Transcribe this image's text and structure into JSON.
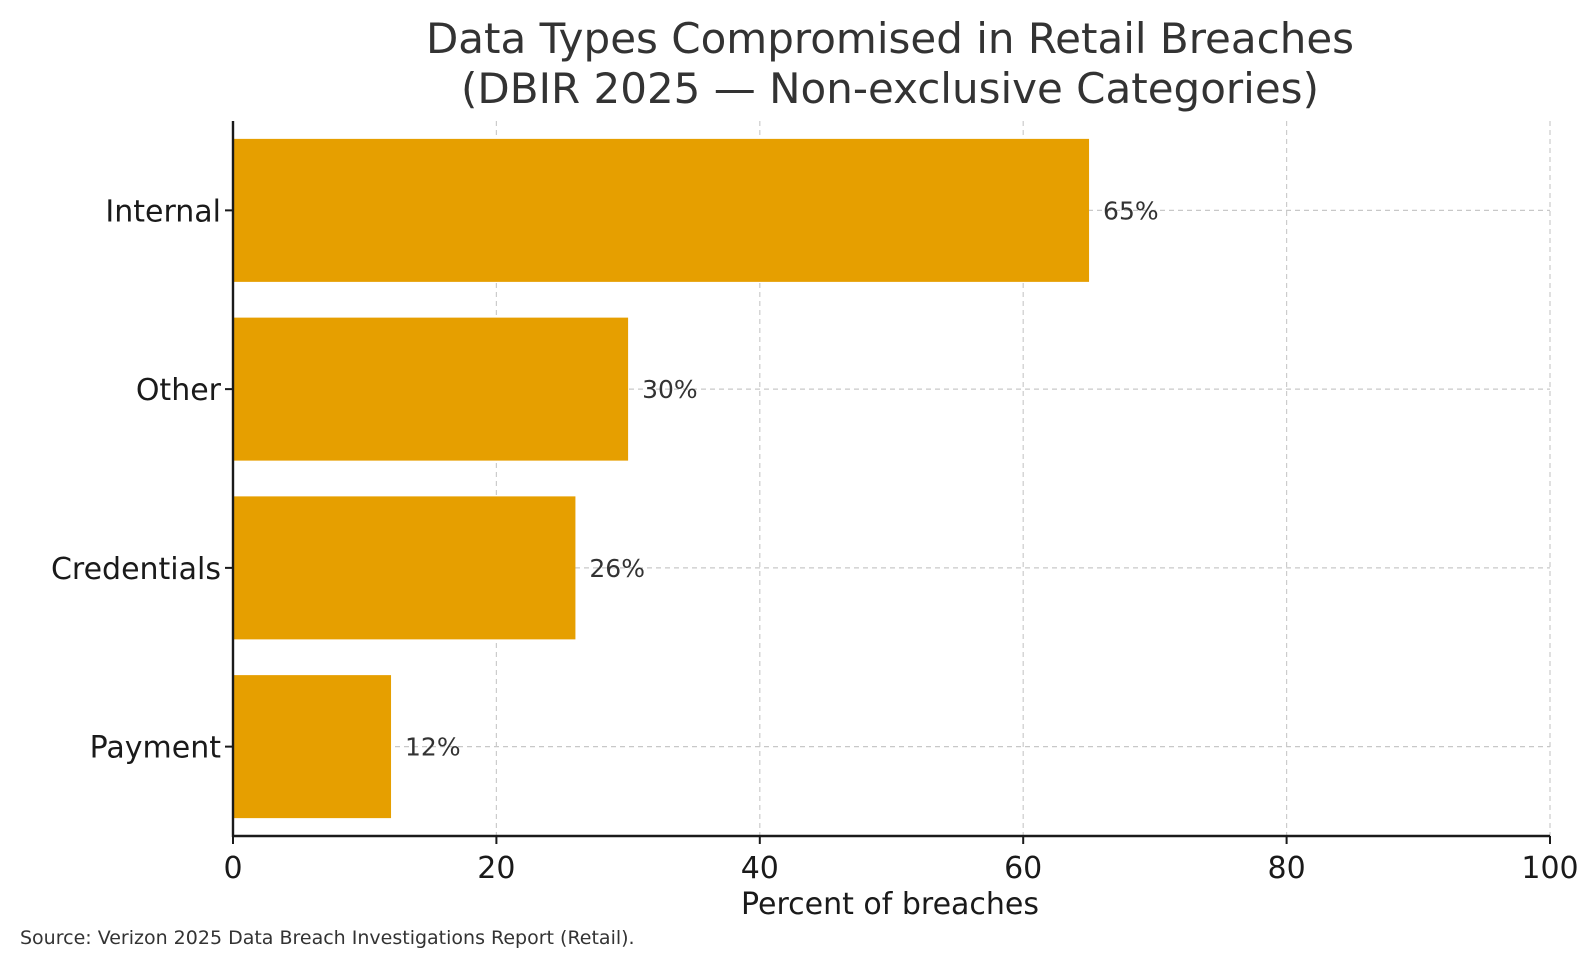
{
  "chart_data": {
    "type": "bar",
    "orientation": "horizontal",
    "title": "Data Types Compromised in Retail Breaches\n(DBIR 2025 — Non-exclusive Categories)",
    "title_lines": [
      "Data Types Compromised in Retail Breaches",
      "(DBIR 2025 — Non-exclusive Categories)"
    ],
    "categories": [
      "Internal",
      "Other",
      "Credentials",
      "Payment"
    ],
    "values": [
      65,
      30,
      26,
      12
    ],
    "data_labels": [
      "65%",
      "30%",
      "26%",
      "12%"
    ],
    "xlabel": "Percent of breaches",
    "ylabel": "",
    "xlim": [
      0,
      100
    ],
    "xticks": [
      0,
      20,
      40,
      60,
      80,
      100
    ],
    "xtick_labels": [
      "0",
      "20",
      "40",
      "60",
      "80",
      "100"
    ],
    "grid": true,
    "bar_color": "#E69F00",
    "note": "Source: Verizon 2025 Data Breach Investigations Report (Retail)."
  }
}
